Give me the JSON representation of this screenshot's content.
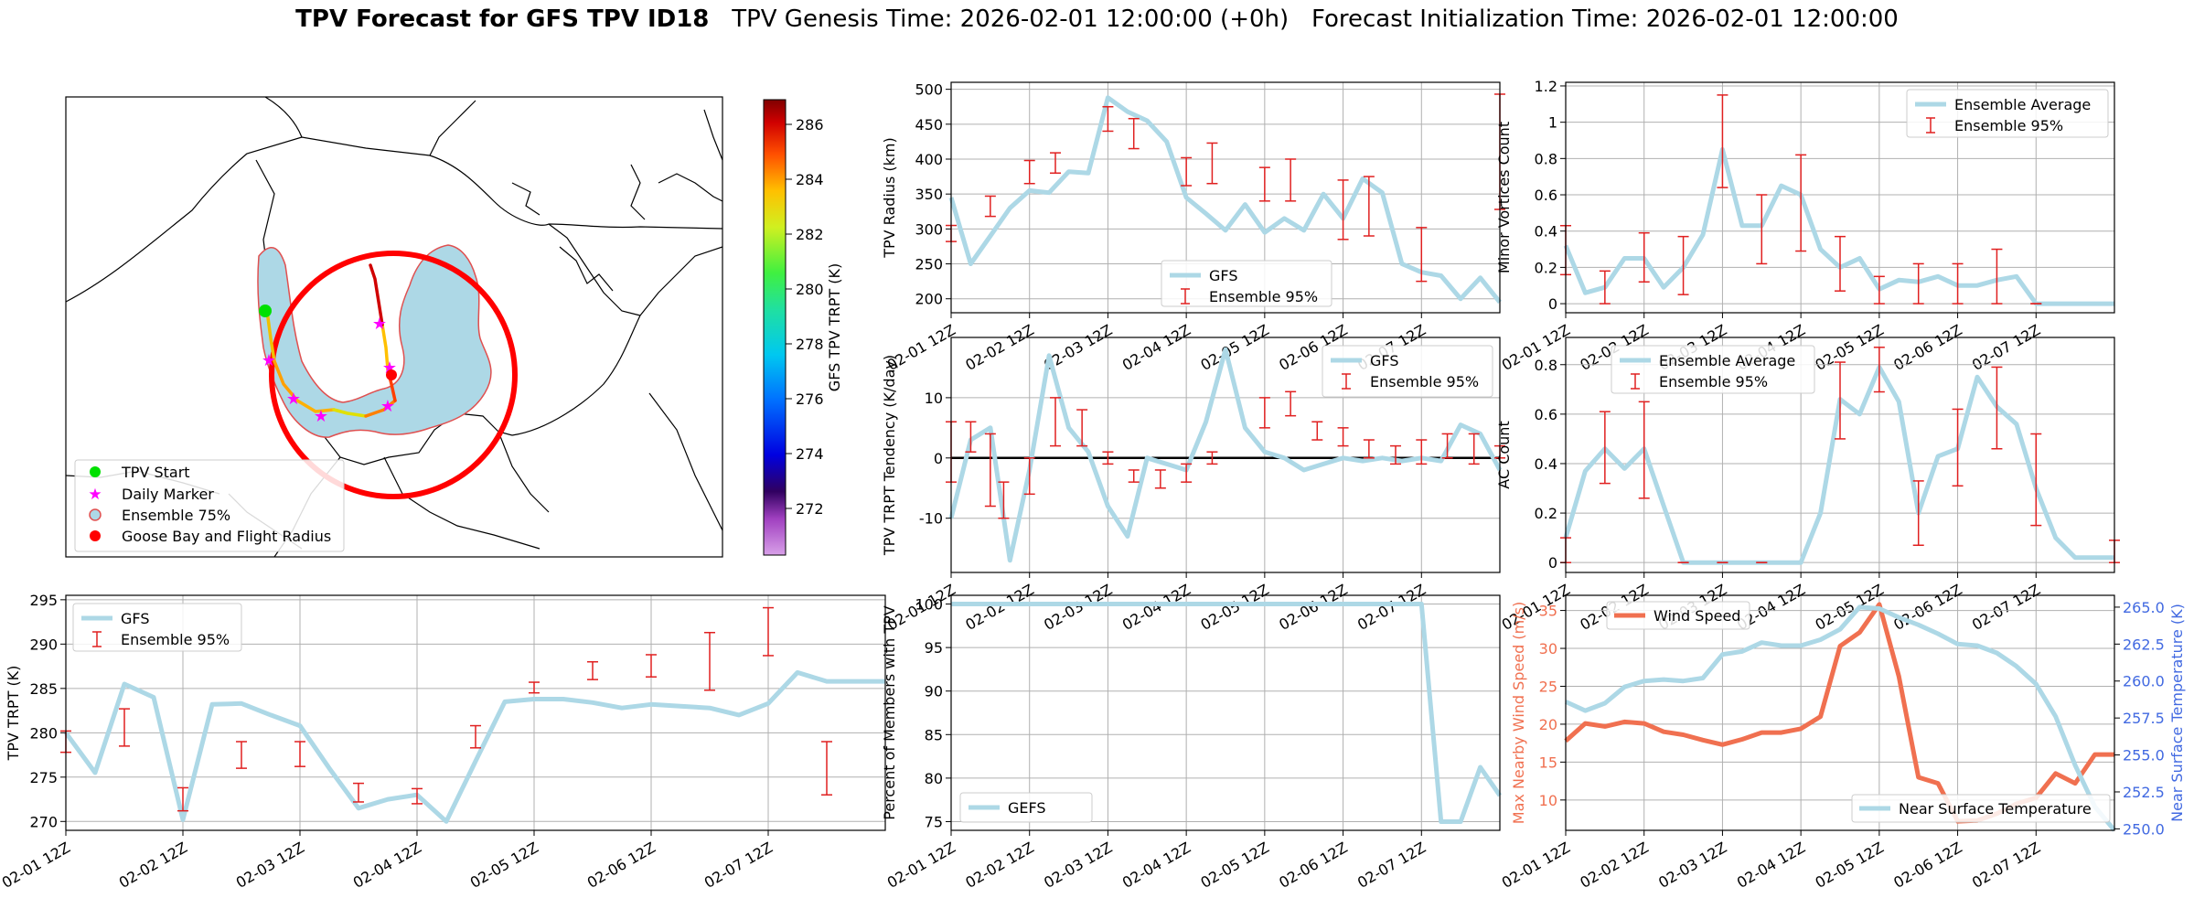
{
  "title": {
    "bold": "TPV Forecast for GFS TPV ID18",
    "genesis": "TPV Genesis Time: 2026-02-01 12:00:00 (+0h)",
    "init": "Forecast Initialization Time: 2026-02-01 12:00:00"
  },
  "colors": {
    "gfs": "#add8e6",
    "error": "#e02020",
    "wind": "#f07050",
    "temp_axis": "#4169e1",
    "wind_axis": "#f07050",
    "circle": "#ff0000"
  },
  "map": {
    "colorbar_label": "GFS TPV TRPT (K)",
    "colorbar_ticks": [
      272,
      274,
      276,
      278,
      280,
      282,
      284,
      286
    ],
    "colorbar_range": [
      270.3,
      286.9
    ],
    "legend": [
      "TPV Start",
      "Daily Marker",
      "Ensemble 75%",
      "Goose Bay and Flight Radius"
    ]
  },
  "chart_data": [
    {
      "id": "radius",
      "type": "line",
      "ylabel": "TPV Radius (km)",
      "ylim": [
        180,
        510
      ],
      "yticks": [
        200,
        250,
        300,
        350,
        400,
        450,
        500
      ],
      "xticks": [
        "02-01 12Z",
        "02-02 12Z",
        "02-03 12Z",
        "02-04 12Z",
        "02-05 12Z",
        "02-06 12Z",
        "02-07 12Z"
      ],
      "legend": [
        "GFS",
        "Ensemble 95%"
      ],
      "legend_pos": "bottom-center",
      "series": [
        {
          "name": "GFS",
          "x": [
            0,
            0.25,
            0.5,
            0.75,
            1,
            1.25,
            1.5,
            1.75,
            2,
            2.25,
            2.5,
            2.75,
            3,
            3.25,
            3.5,
            3.75,
            4,
            4.25,
            4.5,
            4.75,
            5,
            5.25,
            5.5,
            5.75,
            6,
            6.25,
            6.5,
            6.75,
            7
          ],
          "values": [
            345,
            250,
            290,
            330,
            355,
            352,
            382,
            380,
            488,
            468,
            455,
            425,
            345,
            322,
            298,
            335,
            295,
            315,
            298,
            350,
            315,
            372,
            352,
            250,
            238,
            233,
            200,
            230,
            195
          ]
        }
      ],
      "errorbars": [
        {
          "x": 0,
          "lo": 282,
          "hi": 305
        },
        {
          "x": 0.5,
          "lo": 318,
          "hi": 347
        },
        {
          "x": 1,
          "lo": 365,
          "hi": 398
        },
        {
          "x": 1.33,
          "lo": 380,
          "hi": 409
        },
        {
          "x": 2,
          "lo": 440,
          "hi": 475
        },
        {
          "x": 2.33,
          "lo": 415,
          "hi": 458
        },
        {
          "x": 3,
          "lo": 362,
          "hi": 402
        },
        {
          "x": 3.33,
          "lo": 365,
          "hi": 423
        },
        {
          "x": 4,
          "lo": 340,
          "hi": 388
        },
        {
          "x": 4.33,
          "lo": 340,
          "hi": 400
        },
        {
          "x": 5,
          "lo": 285,
          "hi": 370
        },
        {
          "x": 5.33,
          "lo": 290,
          "hi": 375
        },
        {
          "x": 6,
          "lo": 225,
          "hi": 302
        },
        {
          "x": 7,
          "lo": 328,
          "hi": 493
        }
      ]
    },
    {
      "id": "tendency",
      "type": "line",
      "ylabel": "TPV TRPT Tendency (K/day)",
      "ylim": [
        -19,
        20
      ],
      "yticks": [
        -10,
        0,
        10
      ],
      "xticks": [
        "02-01 12Z",
        "02-02 12Z",
        "02-03 12Z",
        "02-04 12Z",
        "02-05 12Z",
        "02-06 12Z",
        "02-07 12Z"
      ],
      "legend": [
        "GFS",
        "Ensemble 95%"
      ],
      "legend_pos": "top-right",
      "series": [
        {
          "name": "GFS",
          "x": [
            0,
            0.25,
            0.5,
            0.75,
            1,
            1.25,
            1.5,
            1.75,
            2,
            2.25,
            2.5,
            2.75,
            3,
            3.25,
            3.5,
            3.75,
            4,
            4.25,
            4.5,
            4.75,
            5,
            5.25,
            5.5,
            5.75,
            6,
            6.25,
            6.5,
            6.75,
            7
          ],
          "values": [
            -10,
            3,
            5,
            -17,
            -2,
            17,
            5,
            1,
            -8,
            -13,
            0,
            -1,
            -2,
            6,
            18,
            5,
            1,
            0,
            -2,
            -1,
            0,
            -0.5,
            0,
            -0.5,
            0,
            -0.5,
            5.5,
            4,
            -2
          ]
        }
      ],
      "errorbars": [
        {
          "x": 0,
          "lo": -4,
          "hi": 6
        },
        {
          "x": 0.25,
          "lo": 1,
          "hi": 6
        },
        {
          "x": 0.5,
          "lo": -8,
          "hi": 4
        },
        {
          "x": 0.67,
          "lo": -10,
          "hi": -4
        },
        {
          "x": 1,
          "lo": -6,
          "hi": 0
        },
        {
          "x": 1.33,
          "lo": 2,
          "hi": 10
        },
        {
          "x": 1.67,
          "lo": 2,
          "hi": 8
        },
        {
          "x": 2,
          "lo": -1,
          "hi": 1
        },
        {
          "x": 2.33,
          "lo": -4,
          "hi": -2
        },
        {
          "x": 2.67,
          "lo": -5,
          "hi": -2
        },
        {
          "x": 3,
          "lo": -4,
          "hi": -1
        },
        {
          "x": 3.33,
          "lo": -1,
          "hi": 1
        },
        {
          "x": 4,
          "lo": 5,
          "hi": 10
        },
        {
          "x": 4.33,
          "lo": 7,
          "hi": 11
        },
        {
          "x": 4.67,
          "lo": 3,
          "hi": 6
        },
        {
          "x": 5,
          "lo": 2,
          "hi": 5
        },
        {
          "x": 5.33,
          "lo": 0,
          "hi": 3
        },
        {
          "x": 5.67,
          "lo": -1,
          "hi": 2
        },
        {
          "x": 6,
          "lo": -1,
          "hi": 3
        },
        {
          "x": 6.33,
          "lo": 0,
          "hi": 4
        },
        {
          "x": 6.67,
          "lo": -1,
          "hi": 4
        },
        {
          "x": 7,
          "lo": 0,
          "hi": 2
        }
      ]
    },
    {
      "id": "members",
      "type": "line",
      "ylabel": "Percent of Members with TPV",
      "ylim": [
        74,
        101
      ],
      "yticks": [
        75,
        80,
        85,
        90,
        95,
        100
      ],
      "xticks": [
        "02-01 12Z",
        "02-02 12Z",
        "02-03 12Z",
        "02-04 12Z",
        "02-05 12Z",
        "02-06 12Z",
        "02-07 12Z"
      ],
      "legend": [
        "GEFS"
      ],
      "legend_pos": "bottom-left",
      "series": [
        {
          "name": "GEFS",
          "x": [
            0,
            6,
            6.25,
            6.5,
            6.75,
            7
          ],
          "values": [
            100,
            100,
            75,
            75,
            81.25,
            78
          ]
        }
      ]
    },
    {
      "id": "minor",
      "type": "line",
      "ylabel": "Minor Vortices Count",
      "ylim": [
        -0.05,
        1.22
      ],
      "yticks": [
        0.0,
        0.2,
        0.4,
        0.6,
        0.8,
        1.0,
        1.2
      ],
      "xticks": [
        "02-01 12Z",
        "02-02 12Z",
        "02-03 12Z",
        "02-04 12Z",
        "02-05 12Z",
        "02-06 12Z",
        "02-07 12Z"
      ],
      "legend": [
        "Ensemble Average",
        "Ensemble 95%"
      ],
      "legend_pos": "top-right",
      "series": [
        {
          "name": "Ensemble Average",
          "x": [
            0,
            0.25,
            0.5,
            0.75,
            1,
            1.25,
            1.5,
            1.75,
            2,
            2.25,
            2.5,
            2.75,
            3,
            3.25,
            3.5,
            3.75,
            4,
            4.25,
            4.5,
            4.75,
            5,
            5.25,
            5.5,
            5.75,
            6,
            6.25,
            6.5,
            6.75,
            7
          ],
          "values": [
            0.32,
            0.06,
            0.09,
            0.25,
            0.25,
            0.09,
            0.2,
            0.38,
            0.85,
            0.43,
            0.43,
            0.65,
            0.6,
            0.3,
            0.2,
            0.25,
            0.08,
            0.13,
            0.12,
            0.15,
            0.1,
            0.1,
            0.13,
            0.15,
            0.0,
            0.0,
            0.0,
            0.0,
            0.0
          ]
        }
      ],
      "errorbars": [
        {
          "x": 0,
          "lo": 0.16,
          "hi": 0.43
        },
        {
          "x": 0.5,
          "lo": 0.0,
          "hi": 0.18
        },
        {
          "x": 1,
          "lo": 0.12,
          "hi": 0.39
        },
        {
          "x": 1.5,
          "lo": 0.05,
          "hi": 0.37
        },
        {
          "x": 2,
          "lo": 0.64,
          "hi": 1.15
        },
        {
          "x": 2.5,
          "lo": 0.22,
          "hi": 0.6
        },
        {
          "x": 3,
          "lo": 0.29,
          "hi": 0.82
        },
        {
          "x": 3.5,
          "lo": 0.07,
          "hi": 0.37
        },
        {
          "x": 4,
          "lo": 0.0,
          "hi": 0.15
        },
        {
          "x": 4.5,
          "lo": 0.0,
          "hi": 0.22
        },
        {
          "x": 5,
          "lo": 0.0,
          "hi": 0.22
        },
        {
          "x": 5.5,
          "lo": 0.0,
          "hi": 0.3
        },
        {
          "x": 6,
          "lo": 0.0,
          "hi": 0.0
        }
      ]
    },
    {
      "id": "ac",
      "type": "line",
      "ylabel": "AC Count",
      "ylim": [
        -0.04,
        0.91
      ],
      "yticks": [
        0.0,
        0.2,
        0.4,
        0.6,
        0.8
      ],
      "xticks": [
        "02-01 12Z",
        "02-02 12Z",
        "02-03 12Z",
        "02-04 12Z",
        "02-05 12Z",
        "02-06 12Z",
        "02-07 12Z"
      ],
      "legend": [
        "Ensemble Average",
        "Ensemble 95%"
      ],
      "legend_pos": "top-left",
      "series": [
        {
          "name": "Ensemble Average",
          "x": [
            0,
            0.25,
            0.5,
            0.75,
            1,
            1.25,
            1.5,
            1.75,
            2,
            2.25,
            2.5,
            2.75,
            3,
            3.25,
            3.5,
            3.75,
            4,
            4.25,
            4.5,
            4.75,
            5,
            5.25,
            5.5,
            5.75,
            6,
            6.25,
            6.5,
            6.75,
            7
          ],
          "values": [
            0.1,
            0.37,
            0.46,
            0.38,
            0.46,
            0.23,
            0.0,
            0.0,
            0.0,
            0.0,
            0.0,
            0.0,
            0.0,
            0.2,
            0.66,
            0.6,
            0.79,
            0.65,
            0.2,
            0.43,
            0.46,
            0.75,
            0.63,
            0.56,
            0.3,
            0.1,
            0.02,
            0.02,
            0.02
          ]
        }
      ],
      "errorbars": [
        {
          "x": 0,
          "lo": 0.0,
          "hi": 0.1
        },
        {
          "x": 0.5,
          "lo": 0.32,
          "hi": 0.61
        },
        {
          "x": 1,
          "lo": 0.26,
          "hi": 0.65
        },
        {
          "x": 1.5,
          "lo": 0.0,
          "hi": 0.0
        },
        {
          "x": 2,
          "lo": 0.0,
          "hi": 0.0
        },
        {
          "x": 2.5,
          "lo": 0.0,
          "hi": 0.0
        },
        {
          "x": 3.5,
          "lo": 0.5,
          "hi": 0.81
        },
        {
          "x": 4,
          "lo": 0.69,
          "hi": 0.87
        },
        {
          "x": 4.5,
          "lo": 0.07,
          "hi": 0.33
        },
        {
          "x": 5,
          "lo": 0.31,
          "hi": 0.62
        },
        {
          "x": 5.5,
          "lo": 0.46,
          "hi": 0.79
        },
        {
          "x": 6,
          "lo": 0.15,
          "hi": 0.52
        },
        {
          "x": 7,
          "lo": 0.0,
          "hi": 0.09
        }
      ]
    },
    {
      "id": "wind_temp",
      "type": "line",
      "ylabel": "Max Nearby Wind Speed (m/s)",
      "ylim": [
        6,
        37
      ],
      "yticks": [
        10,
        15,
        20,
        25,
        30,
        35
      ],
      "y2label": "Near Surface Temperature (K)",
      "y2lim": [
        249.9,
        265.8
      ],
      "y2ticks": [
        "250.0",
        "252.5",
        "255.0",
        "257.5",
        "260.0",
        "262.5",
        "265.0"
      ],
      "xticks": [
        "02-01 12Z",
        "02-02 12Z",
        "02-03 12Z",
        "02-04 12Z",
        "02-05 12Z",
        "02-06 12Z",
        "02-07 12Z"
      ],
      "legend": [
        "Wind Speed",
        "Near Surface Temperature"
      ],
      "series": [
        {
          "name": "Wind Speed",
          "axis": "left",
          "x": [
            0,
            0.25,
            0.5,
            0.75,
            1,
            1.25,
            1.5,
            1.75,
            2,
            2.25,
            2.5,
            2.75,
            3,
            3.25,
            3.5,
            3.75,
            4,
            4.25,
            4.5,
            4.75,
            5,
            5.25,
            5.5,
            5.75,
            6,
            6.25,
            6.5,
            6.75,
            7
          ],
          "values": [
            17.8,
            20.1,
            19.7,
            20.3,
            20.1,
            19.0,
            18.6,
            17.9,
            17.3,
            18.0,
            18.9,
            18.9,
            19.4,
            21.0,
            30.3,
            32.1,
            35.8,
            26.3,
            13.0,
            12.2,
            7.2,
            7.3,
            8.2,
            9.5,
            10.3,
            13.5,
            12.2,
            16.0,
            16.0
          ]
        },
        {
          "name": "Near Surface Temperature",
          "axis": "right",
          "x": [
            0,
            0.25,
            0.5,
            0.75,
            1,
            1.25,
            1.5,
            1.75,
            2,
            2.25,
            2.5,
            2.75,
            3,
            3.25,
            3.5,
            3.75,
            4,
            4.25,
            4.5,
            4.75,
            5,
            5.25,
            5.5,
            5.75,
            6,
            6.25,
            6.5,
            6.75,
            7
          ],
          "values": [
            258.6,
            258.0,
            258.5,
            259.6,
            260.0,
            260.1,
            260.0,
            260.2,
            261.8,
            262.0,
            262.6,
            262.4,
            262.4,
            262.8,
            263.5,
            265.0,
            264.9,
            264.3,
            263.8,
            263.2,
            262.5,
            262.4,
            261.9,
            261.0,
            259.8,
            257.6,
            254.3,
            251.5,
            249.9
          ]
        }
      ]
    },
    {
      "id": "trpt",
      "type": "line",
      "ylabel": "TPV TRPT (K)",
      "ylim": [
        269,
        295.5
      ],
      "yticks": [
        270,
        275,
        280,
        285,
        290,
        295
      ],
      "xticks": [
        "02-01 12Z",
        "02-02 12Z",
        "02-03 12Z",
        "02-04 12Z",
        "02-05 12Z",
        "02-06 12Z",
        "02-07 12Z"
      ],
      "legend": [
        "GFS",
        "Ensemble 95%"
      ],
      "legend_pos": "top-left",
      "series": [
        {
          "name": "GFS",
          "x": [
            0,
            0.25,
            0.5,
            0.75,
            1,
            1.25,
            1.5,
            1.75,
            2,
            2.25,
            2.5,
            2.75,
            3,
            3.25,
            3.5,
            3.75,
            4,
            4.25,
            4.5,
            4.75,
            5,
            5.25,
            5.5,
            5.75,
            6,
            6.25,
            6.5,
            6.75,
            7
          ],
          "values": [
            280,
            275.5,
            285.5,
            284,
            270.2,
            283.2,
            283.3,
            282,
            280.8,
            276,
            271.5,
            272.5,
            273,
            270,
            276.8,
            283.5,
            283.8,
            283.8,
            283.4,
            282.8,
            283.2,
            283,
            282.8,
            282,
            283.3,
            286.8,
            285.8,
            285.8,
            285.8
          ]
        }
      ],
      "errorbars": [
        {
          "x": 0,
          "lo": 277.8,
          "hi": 280.2
        },
        {
          "x": 0.5,
          "lo": 278.5,
          "hi": 282.7
        },
        {
          "x": 1,
          "lo": 271.2,
          "hi": 273.8
        },
        {
          "x": 1.5,
          "lo": 276,
          "hi": 279
        },
        {
          "x": 2,
          "lo": 276.2,
          "hi": 279
        },
        {
          "x": 2.5,
          "lo": 272.2,
          "hi": 274.3
        },
        {
          "x": 3,
          "lo": 272,
          "hi": 273.7
        },
        {
          "x": 3.5,
          "lo": 278.3,
          "hi": 280.8
        },
        {
          "x": 4,
          "lo": 284.5,
          "hi": 285.7
        },
        {
          "x": 4.5,
          "lo": 286,
          "hi": 288
        },
        {
          "x": 5,
          "lo": 286.3,
          "hi": 288.8
        },
        {
          "x": 5.5,
          "lo": 284.8,
          "hi": 291.3
        },
        {
          "x": 6,
          "lo": 288.7,
          "hi": 294.1
        },
        {
          "x": 6.5,
          "lo": 273,
          "hi": 279
        }
      ]
    }
  ]
}
